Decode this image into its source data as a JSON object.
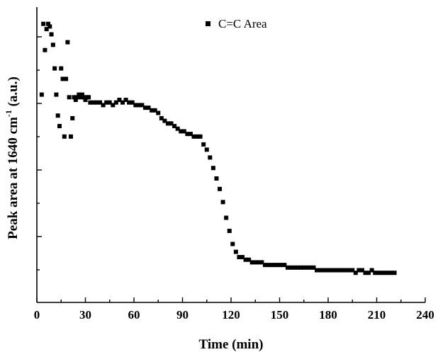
{
  "chart_data": {
    "type": "scatter",
    "xlabel": "Time (min)",
    "ylabel": {
      "prefix": "Peak area at 1640 cm",
      "superscript": "-1",
      "suffix": " (a.u.)"
    },
    "xlim": [
      0,
      240
    ],
    "xticks": [
      0,
      30,
      60,
      90,
      120,
      150,
      180,
      210,
      240
    ],
    "ylim": [
      0,
      1
    ],
    "y_tick_labels_shown": false,
    "grid": false,
    "legend_position": "top",
    "series": [
      {
        "name": "C=C Area",
        "marker": "square",
        "color": "#000000",
        "x": [
          3.0,
          4.0,
          5.0,
          6.0,
          7.0,
          8.0,
          9.0,
          10.0,
          11.0,
          12.0,
          13.0,
          14.0,
          15.0,
          16.0,
          17.0,
          18.0,
          19.0,
          20.0,
          21.0,
          22.0,
          23.0,
          24.0,
          25.0,
          26.0,
          27.0,
          28.0,
          29.0,
          30.0,
          31.0,
          32.0,
          33.0,
          35.0,
          37.0,
          39.0,
          41.0,
          43.0,
          45.0,
          47.0,
          49.0,
          51.0,
          53.0,
          55.0,
          57.0,
          59.0,
          61.0,
          63.0,
          65.0,
          67.0,
          69.0,
          71.0,
          73.0,
          75.0,
          77.0,
          79.0,
          81.0,
          83.0,
          85.0,
          87.0,
          89.0,
          91.0,
          93.0,
          95.0,
          97.0,
          99.0,
          101.0,
          103.0,
          105.0,
          107.0,
          109.0,
          111.0,
          113.0,
          115.0,
          117.0,
          119.0,
          121.0,
          123.0,
          125.0,
          127.0,
          129.0,
          131.0,
          133.0,
          135.0,
          137.0,
          139.0,
          141.0,
          143.0,
          145.0,
          147.0,
          149.0,
          151.0,
          153.0,
          155.0,
          157.0,
          159.0,
          161.0,
          163.0,
          165.0,
          167.0,
          169.0,
          171.0,
          173.0,
          175.0,
          177.0,
          179.0,
          181.0,
          183.0,
          185.0,
          187.0,
          189.0,
          191.0,
          193.0,
          195.0,
          197.0,
          199.0,
          201.0,
          203.0,
          205.0,
          207.0,
          209.0,
          211.0,
          213.0,
          215.0,
          217.0,
          219.0,
          221.0
        ],
        "y": [
          0.72,
          0.99,
          0.89,
          0.97,
          0.99,
          0.98,
          0.95,
          0.91,
          0.82,
          0.72,
          0.64,
          0.6,
          0.82,
          0.78,
          0.56,
          0.78,
          0.92,
          0.71,
          0.56,
          0.63,
          0.71,
          0.7,
          0.71,
          0.72,
          0.71,
          0.72,
          0.71,
          0.7,
          0.71,
          0.71,
          0.69,
          0.69,
          0.69,
          0.69,
          0.68,
          0.69,
          0.69,
          0.68,
          0.69,
          0.7,
          0.69,
          0.7,
          0.69,
          0.69,
          0.68,
          0.68,
          0.68,
          0.67,
          0.67,
          0.66,
          0.66,
          0.65,
          0.63,
          0.62,
          0.61,
          0.61,
          0.6,
          0.59,
          0.58,
          0.58,
          0.57,
          0.57,
          0.56,
          0.56,
          0.56,
          0.53,
          0.51,
          0.48,
          0.44,
          0.4,
          0.36,
          0.31,
          0.25,
          0.2,
          0.15,
          0.12,
          0.1,
          0.1,
          0.09,
          0.09,
          0.08,
          0.08,
          0.08,
          0.08,
          0.07,
          0.07,
          0.07,
          0.07,
          0.07,
          0.07,
          0.07,
          0.06,
          0.06,
          0.06,
          0.06,
          0.06,
          0.06,
          0.06,
          0.06,
          0.06,
          0.05,
          0.05,
          0.05,
          0.05,
          0.05,
          0.05,
          0.05,
          0.05,
          0.05,
          0.05,
          0.05,
          0.05,
          0.04,
          0.05,
          0.05,
          0.04,
          0.04,
          0.05,
          0.04,
          0.04,
          0.04,
          0.04,
          0.04,
          0.04,
          0.04
        ]
      }
    ]
  }
}
